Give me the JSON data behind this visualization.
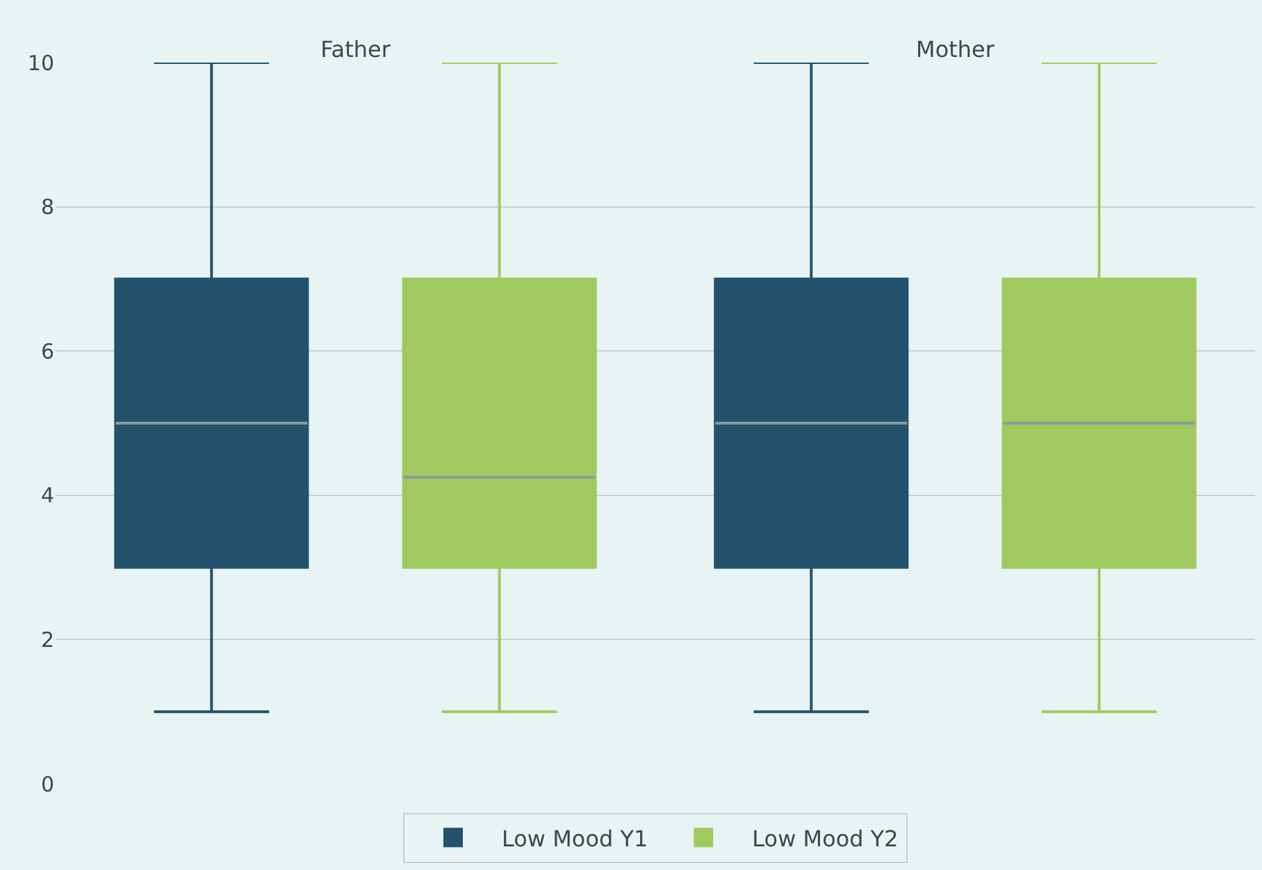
{
  "chart_data": {
    "type": "box",
    "categories": [
      "Father",
      "Mother"
    ],
    "series": [
      {
        "name": "Low Mood Y1",
        "color": "#23526d",
        "boxes": [
          {
            "low": 1,
            "q1": 3,
            "median": 5,
            "q3": 7,
            "high": 10
          },
          {
            "low": 1,
            "q1": 3,
            "median": 5,
            "q3": 7,
            "high": 10
          }
        ]
      },
      {
        "name": "Low Mood Y2",
        "color": "#a0c95f",
        "boxes": [
          {
            "low": 1,
            "q1": 3,
            "median": 4.25,
            "q3": 7,
            "high": 10
          },
          {
            "low": 1,
            "q1": 3,
            "median": 5,
            "q3": 7,
            "high": 10
          }
        ]
      }
    ],
    "ylim": [
      0,
      10
    ],
    "yticks": [
      0,
      2,
      4,
      6,
      8,
      10
    ],
    "grid": "y",
    "legend": "bottom"
  }
}
